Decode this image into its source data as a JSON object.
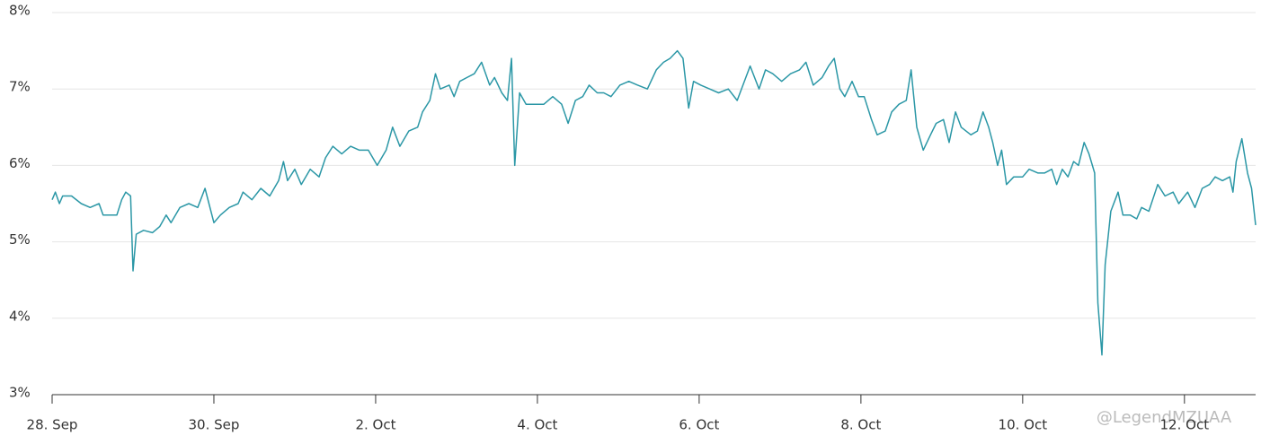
{
  "chart_data": {
    "type": "line",
    "x": [
      0,
      0.04,
      0.09,
      0.13,
      0.24,
      0.36,
      0.47,
      0.58,
      0.63,
      0.8,
      0.86,
      0.91,
      0.97,
      1.0,
      1.04,
      1.13,
      1.24,
      1.33,
      1.41,
      1.47,
      1.58,
      1.69,
      1.8,
      1.89,
      2.0,
      2.08,
      2.19,
      2.3,
      2.36,
      2.47,
      2.58,
      2.69,
      2.8,
      2.86,
      2.91,
      3.0,
      3.08,
      3.19,
      3.3,
      3.38,
      3.47,
      3.58,
      3.69,
      3.8,
      3.91,
      4.02,
      4.13,
      4.21,
      4.3,
      4.41,
      4.52,
      4.58,
      4.67,
      4.74,
      4.8,
      4.91,
      4.97,
      5.04,
      5.13,
      5.22,
      5.31,
      5.41,
      5.47,
      5.56,
      5.63,
      5.68,
      5.72,
      5.78,
      5.86,
      5.97,
      6.08,
      6.19,
      6.3,
      6.38,
      6.47,
      6.56,
      6.64,
      6.74,
      6.82,
      6.91,
      7.02,
      7.13,
      7.24,
      7.36,
      7.47,
      7.56,
      7.64,
      7.73,
      7.8,
      7.87,
      7.93,
      8.02,
      8.13,
      8.24,
      8.36,
      8.47,
      8.63,
      8.74,
      8.82,
      8.91,
      9.02,
      9.13,
      9.24,
      9.32,
      9.41,
      9.52,
      9.6,
      9.67,
      9.74,
      9.8,
      9.89,
      9.97,
      10.04,
      10.13,
      10.2,
      10.3,
      10.38,
      10.47,
      10.56,
      10.62,
      10.69,
      10.77,
      10.86,
      10.93,
      11.02,
      11.09,
      11.17,
      11.24,
      11.36,
      11.44,
      11.51,
      11.58,
      11.63,
      11.69,
      11.74,
      11.8,
      11.89,
      12.0,
      12.08,
      12.19,
      12.27,
      12.36,
      12.42,
      12.49,
      12.56,
      12.63,
      12.69,
      12.76,
      12.82,
      12.89,
      12.93,
      12.98,
      13.02,
      13.09,
      13.18,
      13.24,
      13.33,
      13.41,
      13.47,
      13.56,
      13.67,
      13.76,
      13.86,
      13.93,
      14.04,
      14.13,
      14.22,
      14.31,
      14.38,
      14.47,
      14.56,
      14.6,
      14.64,
      14.71,
      14.78,
      14.83,
      14.88
    ],
    "series": [
      {
        "color": "#2b97a6",
        "values": [
          5.55,
          5.65,
          5.5,
          5.6,
          5.6,
          5.5,
          5.45,
          5.5,
          5.35,
          5.35,
          5.55,
          5.65,
          5.6,
          4.62,
          5.1,
          5.15,
          5.12,
          5.2,
          5.35,
          5.25,
          5.45,
          5.5,
          5.45,
          5.7,
          5.25,
          5.35,
          5.45,
          5.5,
          5.65,
          5.55,
          5.7,
          5.6,
          5.8,
          6.05,
          5.8,
          5.95,
          5.75,
          5.95,
          5.85,
          6.1,
          6.25,
          6.15,
          6.25,
          6.2,
          6.2,
          6.0,
          6.2,
          6.5,
          6.25,
          6.45,
          6.5,
          6.7,
          6.85,
          7.2,
          7.0,
          7.05,
          6.9,
          7.1,
          7.15,
          7.2,
          7.35,
          7.05,
          7.15,
          6.95,
          6.85,
          7.4,
          6.0,
          6.95,
          6.8,
          6.8,
          6.8,
          6.9,
          6.8,
          6.55,
          6.85,
          6.9,
          7.05,
          6.95,
          6.95,
          6.9,
          7.05,
          7.1,
          7.05,
          7.0,
          7.25,
          7.35,
          7.4,
          7.5,
          7.4,
          6.75,
          7.1,
          7.05,
          7.0,
          6.95,
          7.0,
          6.85,
          7.3,
          7.0,
          7.25,
          7.2,
          7.1,
          7.2,
          7.25,
          7.35,
          7.05,
          7.15,
          7.3,
          7.4,
          7.0,
          6.9,
          7.1,
          6.9,
          6.9,
          6.6,
          6.4,
          6.45,
          6.7,
          6.8,
          6.85,
          7.25,
          6.5,
          6.2,
          6.4,
          6.55,
          6.6,
          6.3,
          6.7,
          6.5,
          6.4,
          6.45,
          6.7,
          6.5,
          6.3,
          6.0,
          6.2,
          5.75,
          5.85,
          5.85,
          5.95,
          5.9,
          5.9,
          5.95,
          5.75,
          5.95,
          5.85,
          6.05,
          6.0,
          6.3,
          6.15,
          5.9,
          4.2,
          3.52,
          4.7,
          5.4,
          5.65,
          5.35,
          5.35,
          5.3,
          5.45,
          5.4,
          5.75,
          5.6,
          5.65,
          5.5,
          5.65,
          5.45,
          5.7,
          5.75,
          5.85,
          5.8,
          5.85,
          5.65,
          6.05,
          6.35,
          5.9,
          5.7,
          5.22
        ]
      }
    ],
    "xlim": [
      0,
      14.88
    ],
    "xticks": [
      {
        "value": 0,
        "label": "28. Sep"
      },
      {
        "value": 2,
        "label": "30. Sep"
      },
      {
        "value": 4,
        "label": "2. Oct"
      },
      {
        "value": 6,
        "label": "4. Oct"
      },
      {
        "value": 8,
        "label": "6. Oct"
      },
      {
        "value": 10,
        "label": "8. Oct"
      },
      {
        "value": 12,
        "label": "10. Oct"
      },
      {
        "value": 14,
        "label": "12. Oct"
      }
    ],
    "ylim": [
      3,
      8
    ],
    "yticks": [
      {
        "value": 3,
        "label": "3%"
      },
      {
        "value": 4,
        "label": "4%"
      },
      {
        "value": 5,
        "label": "5%"
      },
      {
        "value": 6,
        "label": "6%"
      },
      {
        "value": 7,
        "label": "7%"
      },
      {
        "value": 8,
        "label": "8%"
      }
    ],
    "grid": true,
    "watermark": "@LegendMZUAA"
  }
}
